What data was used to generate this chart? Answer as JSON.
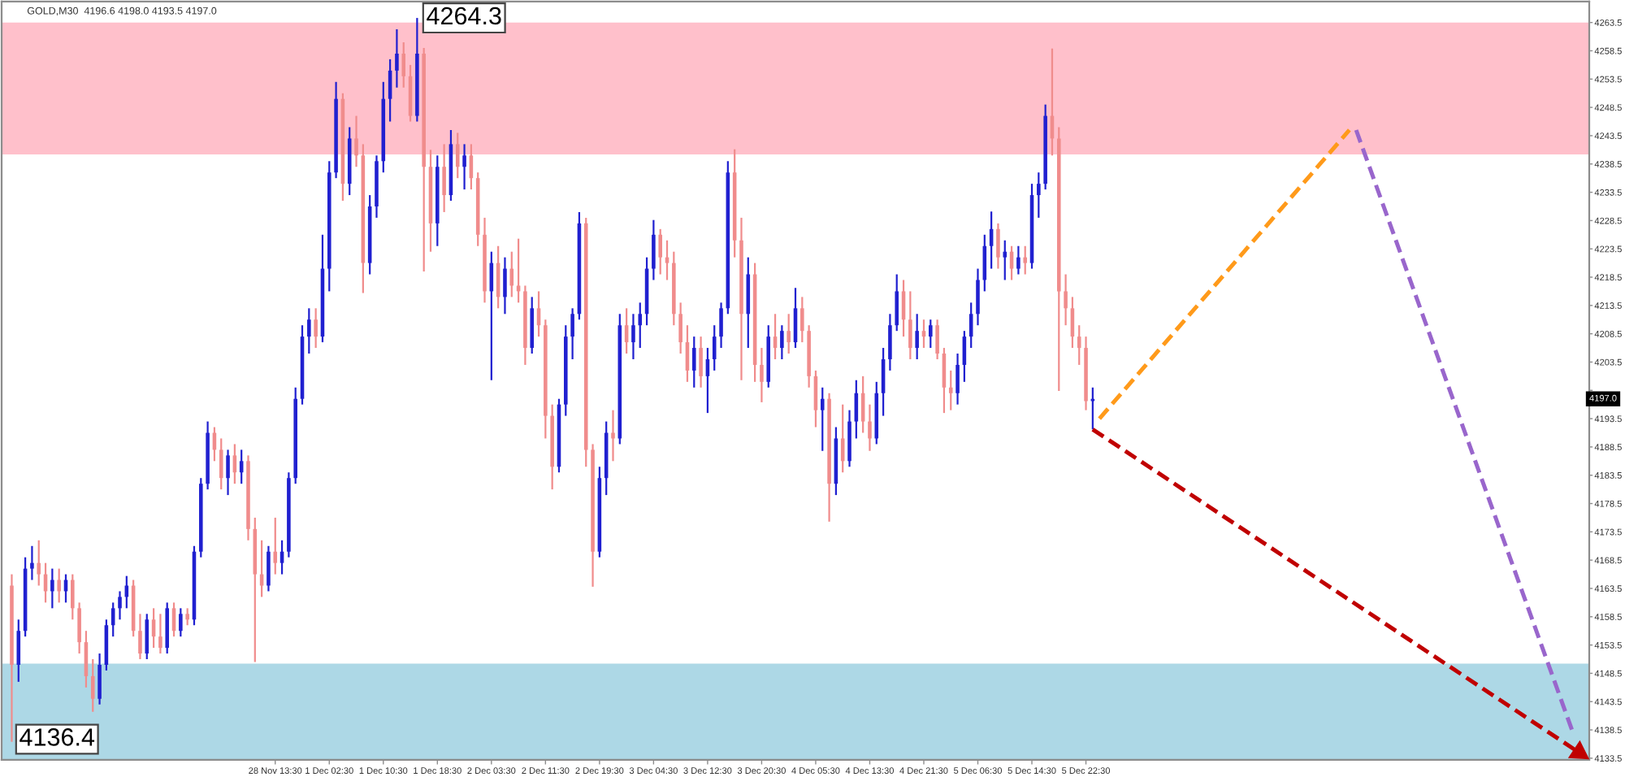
{
  "chart_data": {
    "type": "candlestick",
    "title": "GOLD,M30  4196.6 4198.0 4193.5 4197.0",
    "categories": [
      null,
      null,
      null,
      null,
      null,
      null,
      null,
      null,
      null,
      null,
      null,
      null,
      null,
      null,
      null,
      null,
      null,
      null,
      null,
      null,
      null,
      null,
      null,
      null,
      null,
      null,
      null,
      null,
      null,
      null,
      null,
      null,
      null,
      null,
      null,
      null,
      null,
      null,
      null,
      null,
      "28 Nov 13:30",
      null,
      null,
      null,
      null,
      null,
      null,
      null,
      "1 Dec 02:30",
      null,
      null,
      null,
      null,
      null,
      null,
      null,
      "1 Dec 10:30",
      null,
      null,
      null,
      null,
      null,
      null,
      null,
      "1 Dec 18:30",
      null,
      null,
      null,
      null,
      null,
      null,
      null,
      "2 Dec 03:30",
      null,
      null,
      null,
      null,
      null,
      null,
      null,
      "2 Dec 11:30",
      null,
      null,
      null,
      null,
      null,
      null,
      null,
      "2 Dec 19:30",
      null,
      null,
      null,
      null,
      null,
      null,
      null,
      "3 Dec 04:30",
      null,
      null,
      null,
      null,
      null,
      null,
      null,
      "3 Dec 12:30",
      null,
      null,
      null,
      null,
      null,
      null,
      null,
      "3 Dec 20:30",
      null,
      null,
      null,
      null,
      null,
      null,
      null,
      "4 Dec 05:30",
      null,
      null,
      null,
      null,
      null,
      null,
      null,
      "4 Dec 13:30",
      null,
      null,
      null,
      null,
      null,
      null,
      null,
      "4 Dec 21:30",
      null,
      null,
      null,
      null,
      null,
      null,
      null,
      "5 Dec 06:30",
      null,
      null,
      null,
      null,
      null,
      null,
      null,
      "5 Dec 14:30",
      null,
      null,
      null,
      null,
      null,
      null,
      null,
      "5 Dec 22:30",
      null,
      null,
      null,
      null,
      null,
      null,
      null,
      null,
      null,
      null,
      null,
      null,
      null,
      null,
      null,
      null,
      null,
      null,
      null,
      null,
      null,
      null,
      null,
      null,
      null,
      null,
      null,
      null,
      null,
      null,
      null,
      null,
      null,
      null,
      null,
      null,
      null,
      null,
      null,
      null,
      null,
      null,
      null,
      null,
      null,
      null,
      null,
      null,
      null,
      null,
      null,
      null,
      null,
      null,
      null,
      null,
      null,
      null,
      null,
      null,
      null,
      null,
      null,
      null,
      null,
      null,
      null,
      null,
      null,
      null,
      null,
      null,
      null,
      null
    ],
    "ohlc": [
      null,
      [
        4164,
        4166,
        4136.4,
        4150
      ],
      [
        4150,
        4158,
        4147,
        4156
      ],
      [
        4156,
        4169,
        4155,
        4167
      ],
      [
        4167,
        4171,
        4165,
        4168
      ],
      [
        4168,
        4172,
        4164,
        4166
      ],
      [
        4166,
        4168,
        4161,
        4163
      ],
      [
        4163,
        4167,
        4160,
        4165
      ],
      [
        4165,
        4167,
        4161,
        4163
      ],
      [
        4163,
        4166,
        4161,
        4165
      ],
      [
        4165,
        4166,
        4158,
        4160
      ],
      [
        4160,
        4161,
        4152,
        4154
      ],
      [
        4154,
        4156,
        4146,
        4148
      ],
      [
        4148,
        4151,
        4141.7,
        4144
      ],
      [
        4144,
        4152,
        4143,
        4150
      ],
      [
        4150,
        4158,
        4149,
        4157
      ],
      [
        4157,
        4161,
        4155,
        4160
      ],
      [
        4160,
        4163,
        4158,
        4162
      ],
      [
        4162,
        4165.7,
        4160,
        4164
      ],
      [
        4164,
        4165,
        4155,
        4156
      ],
      [
        4156,
        4159,
        4151,
        4152
      ],
      [
        4152,
        4159,
        4151,
        4158
      ],
      [
        4158,
        4160,
        4153,
        4155
      ],
      [
        4155,
        4159,
        4152,
        4153
      ],
      [
        4153,
        4161,
        4152,
        4160
      ],
      [
        4160,
        4161,
        4155,
        4156
      ],
      [
        4156,
        4160,
        4155,
        4159
      ],
      [
        4159,
        4160,
        4157,
        4158
      ],
      [
        4158,
        4171,
        4157,
        4170
      ],
      [
        4170,
        4183,
        4169,
        4182
      ],
      [
        4182,
        4193,
        4181,
        4191
      ],
      [
        4191,
        4192,
        4186,
        4188
      ],
      [
        4188,
        4190,
        4181,
        4183
      ],
      [
        4183,
        4188,
        4180,
        4187
      ],
      [
        4187,
        4189,
        4182,
        4184
      ],
      [
        4184,
        4188,
        4182,
        4186
      ],
      [
        4186,
        4187,
        4172,
        4174
      ],
      [
        4174,
        4176,
        4150.5,
        4166
      ],
      [
        4166,
        4172,
        4162,
        4164
      ],
      [
        4164,
        4171,
        4163,
        4170
      ],
      [
        4170,
        4176,
        4166,
        4168
      ],
      [
        4168,
        4172,
        4166,
        4170
      ],
      [
        4170,
        4184,
        4169,
        4183
      ],
      [
        4183,
        4199,
        4182,
        4197
      ],
      [
        4197,
        4210,
        4196,
        4208
      ],
      [
        4208,
        4213,
        4205,
        4211
      ],
      [
        4211,
        4213,
        4206,
        4208
      ],
      [
        4208,
        4226,
        4207,
        4220
      ],
      [
        4220,
        4239,
        4216,
        4237
      ],
      [
        4237,
        4253,
        4236,
        4250
      ],
      [
        4250,
        4251,
        4232,
        4235
      ],
      [
        4235,
        4245,
        4233,
        4243
      ],
      [
        4243,
        4247,
        4238,
        4240
      ],
      [
        4240,
        4242,
        4215.7,
        4221
      ],
      [
        4221,
        4233,
        4219,
        4231
      ],
      [
        4231,
        4240,
        4229,
        4239
      ],
      [
        4239,
        4253,
        4237,
        4250
      ],
      [
        4250,
        4257,
        4246,
        4255
      ],
      [
        4255,
        4262.3,
        4252,
        4258
      ],
      [
        4258,
        4260,
        4252,
        4254
      ],
      [
        4254,
        4256,
        4246,
        4247
      ],
      [
        4247,
        4264.3,
        4246,
        4258
      ],
      [
        4258,
        4259,
        4219.5,
        4238
      ],
      [
        4238,
        4241,
        4223,
        4228
      ],
      [
        4228,
        4240,
        4224,
        4238
      ],
      [
        4238,
        4242,
        4230,
        4233
      ],
      [
        4233,
        4244.5,
        4232,
        4242
      ],
      [
        4242,
        4244,
        4236,
        4238
      ],
      [
        4238,
        4242,
        4234,
        4240
      ],
      [
        4240,
        4242,
        4234,
        4236
      ],
      [
        4236,
        4237,
        4224,
        4226
      ],
      [
        4226,
        4229,
        4214,
        4216
      ],
      [
        4216,
        4223,
        4200.3,
        4221
      ],
      [
        4221,
        4224,
        4213,
        4215
      ],
      [
        4215,
        4222,
        4212,
        4220
      ],
      [
        4220,
        4223,
        4215,
        4217
      ],
      [
        4217,
        4225.3,
        4214,
        4216
      ],
      [
        4216,
        4217,
        4203,
        4206
      ],
      [
        4206,
        4215,
        4205,
        4213
      ],
      [
        4213,
        4216,
        4208,
        4210
      ],
      [
        4210,
        4211,
        4190,
        4194
      ],
      [
        4194,
        4196,
        4181,
        4185
      ],
      [
        4185,
        4197,
        4184,
        4196
      ],
      [
        4196,
        4210,
        4194,
        4208
      ],
      [
        4208,
        4213,
        4204,
        4212
      ],
      [
        4212,
        4230,
        4211,
        4228
      ],
      [
        4228,
        4229,
        4185,
        4188
      ],
      [
        4188,
        4189,
        4163.8,
        4170
      ],
      [
        4170,
        4185,
        4169,
        4183
      ],
      [
        4183,
        4193,
        4180,
        4191
      ],
      [
        4191,
        4195,
        4186,
        4190
      ],
      [
        4190,
        4212,
        4189,
        4210
      ],
      [
        4210,
        4213,
        4205,
        4207
      ],
      [
        4207,
        4212,
        4204,
        4210
      ],
      [
        4210,
        4214,
        4206,
        4212
      ],
      [
        4212,
        4222,
        4210,
        4220
      ],
      [
        4220,
        4228.6,
        4218,
        4226
      ],
      [
        4226,
        4227,
        4219,
        4222
      ],
      [
        4222,
        4225,
        4218,
        4221
      ],
      [
        4221,
        4223,
        4210,
        4212
      ],
      [
        4212,
        4214,
        4205,
        4207
      ],
      [
        4207,
        4210,
        4200,
        4202
      ],
      [
        4202,
        4208,
        4199,
        4206
      ],
      [
        4206,
        4208,
        4199,
        4201
      ],
      [
        4201,
        4206,
        4194.5,
        4204
      ],
      [
        4204,
        4210,
        4202,
        4208
      ],
      [
        4208,
        4214,
        4206,
        4213
      ],
      [
        4213,
        4239,
        4212,
        4237
      ],
      [
        4237,
        4241.1,
        4222,
        4225
      ],
      [
        4225,
        4229,
        4200.3,
        4212
      ],
      [
        4212,
        4222,
        4206,
        4219
      ],
      [
        4219,
        4221,
        4200,
        4203
      ],
      [
        4203,
        4206,
        4196.4,
        4200
      ],
      [
        4200,
        4210,
        4199,
        4208
      ],
      [
        4208,
        4212,
        4204,
        4206
      ],
      [
        4206,
        4210,
        4204,
        4209
      ],
      [
        4209,
        4212,
        4205,
        4207
      ],
      [
        4207,
        4216.6,
        4206,
        4213
      ],
      [
        4213,
        4215,
        4207,
        4209
      ],
      [
        4209,
        4210,
        4199,
        4201
      ],
      [
        4201,
        4202,
        4192,
        4195
      ],
      [
        4195,
        4199,
        4187.8,
        4197
      ],
      [
        4197,
        4198,
        4175.3,
        4182
      ],
      [
        4182,
        4192,
        4180,
        4190
      ],
      [
        4190,
        4196,
        4184,
        4186
      ],
      [
        4186,
        4195,
        4185,
        4193
      ],
      [
        4193,
        4200.3,
        4190,
        4198
      ],
      [
        4198,
        4201,
        4191,
        4193
      ],
      [
        4193,
        4196,
        4187.8,
        4190
      ],
      [
        4190,
        4200,
        4189,
        4198
      ],
      [
        4198,
        4206,
        4194,
        4204
      ],
      [
        4204,
        4212,
        4202,
        4210
      ],
      [
        4210,
        4219,
        4209,
        4216
      ],
      [
        4216,
        4218,
        4208,
        4211
      ],
      [
        4211,
        4216,
        4204,
        4206
      ],
      [
        4206,
        4212,
        4204,
        4209
      ],
      [
        4209,
        4211,
        4206,
        4208
      ],
      [
        4208,
        4211,
        4206,
        4210
      ],
      [
        4210,
        4211,
        4204,
        4205
      ],
      [
        4205,
        4206,
        4194.5,
        4199
      ],
      [
        4199,
        4202,
        4195,
        4198
      ],
      [
        4198,
        4205,
        4196,
        4203
      ],
      [
        4203,
        4209,
        4200,
        4208
      ],
      [
        4208,
        4214,
        4206,
        4212
      ],
      [
        4212,
        4220,
        4210,
        4218
      ],
      [
        4218,
        4226,
        4216,
        4224
      ],
      [
        4224,
        4230.1,
        4220,
        4227
      ],
      [
        4227,
        4228,
        4220,
        4222
      ],
      [
        4222,
        4225,
        4218,
        4223
      ],
      [
        4223,
        4224,
        4218,
        4220
      ],
      [
        4220,
        4224,
        4219,
        4222
      ],
      [
        4222,
        4224,
        4219,
        4221
      ],
      [
        4221,
        4235,
        4220,
        4233
      ],
      [
        4233,
        4237,
        4229,
        4235
      ],
      [
        4235,
        4249,
        4234,
        4247
      ],
      [
        4247,
        4258.9,
        4240,
        4243
      ],
      [
        4243,
        4245,
        4198.4,
        4216
      ],
      [
        4216,
        4219,
        4210,
        4213
      ],
      [
        4213,
        4215,
        4206,
        4208
      ],
      [
        4208,
        4210,
        4203,
        4206
      ],
      [
        4206,
        4208,
        4195,
        4196.6
      ],
      [
        4196.6,
        4199,
        4191.6,
        4197.0
      ],
      null,
      null,
      null,
      null,
      null,
      null,
      null,
      null,
      null,
      null,
      null,
      null,
      null,
      null,
      null,
      null,
      null,
      null,
      null,
      null,
      null,
      null,
      null,
      null,
      null,
      null,
      null,
      null,
      null,
      null,
      null,
      null,
      null,
      null,
      null,
      null,
      null,
      null,
      null,
      null,
      null,
      null,
      null,
      null,
      null,
      null,
      null,
      null,
      null,
      null,
      null,
      null,
      null,
      null,
      null,
      null,
      null,
      null,
      null,
      null,
      null,
      null,
      null,
      null,
      null,
      null,
      null,
      null,
      null,
      null,
      null,
      null,
      null
    ],
    "colors": [
      null,
      "#f08c8c",
      "#2020d0",
      "#2020d0",
      "#2020d0",
      "#f08c8c",
      "#f08c8c",
      "#2020d0",
      "#f08c8c",
      "#2020d0",
      "#f08c8c",
      "#f08c8c",
      "#f08c8c",
      "#f08c8c",
      "#2020d0",
      "#2020d0",
      "#2020d0",
      "#2020d0",
      "#2020d0",
      "#f08c8c",
      "#f08c8c",
      "#2020d0",
      "#f08c8c",
      "#f08c8c",
      "#2020d0",
      "#f08c8c",
      "#2020d0",
      "#f08c8c",
      "#2020d0",
      "#2020d0",
      "#2020d0",
      "#f08c8c",
      "#f08c8c",
      "#2020d0",
      "#f08c8c",
      "#2020d0",
      "#f08c8c",
      "#f08c8c",
      "#f08c8c",
      "#2020d0",
      "#f08c8c",
      "#2020d0",
      "#2020d0",
      "#2020d0",
      "#2020d0",
      "#2020d0",
      "#f08c8c",
      "#2020d0",
      "#2020d0",
      "#2020d0",
      "#f08c8c",
      "#2020d0",
      "#f08c8c",
      "#f08c8c",
      "#2020d0",
      "#2020d0",
      "#2020d0",
      "#2020d0",
      "#2020d0",
      "#f08c8c",
      "#f08c8c",
      "#2020d0",
      "#f08c8c",
      "#f08c8c",
      "#2020d0",
      "#f08c8c",
      "#2020d0",
      "#f08c8c",
      "#2020d0",
      "#f08c8c",
      "#f08c8c",
      "#f08c8c",
      "#2020d0",
      "#f08c8c",
      "#2020d0",
      "#f08c8c",
      "#f08c8c",
      "#f08c8c",
      "#2020d0",
      "#f08c8c",
      "#f08c8c",
      "#f08c8c",
      "#2020d0",
      "#2020d0",
      "#2020d0",
      "#2020d0",
      "#f08c8c",
      "#f08c8c",
      "#2020d0",
      "#2020d0",
      "#f08c8c",
      "#2020d0",
      "#f08c8c",
      "#2020d0",
      "#2020d0",
      "#2020d0",
      "#2020d0",
      "#f08c8c",
      "#f08c8c",
      "#f08c8c",
      "#f08c8c",
      "#f08c8c",
      "#2020d0",
      "#f08c8c",
      "#2020d0",
      "#2020d0",
      "#2020d0",
      "#2020d0",
      "#f08c8c",
      "#f08c8c",
      "#2020d0",
      "#f08c8c",
      "#f08c8c",
      "#2020d0",
      "#f08c8c",
      "#2020d0",
      "#f08c8c",
      "#2020d0",
      "#f08c8c",
      "#f08c8c",
      "#f08c8c",
      "#2020d0",
      "#f08c8c",
      "#2020d0",
      "#f08c8c",
      "#2020d0",
      "#2020d0",
      "#f08c8c",
      "#f08c8c",
      "#2020d0",
      "#2020d0",
      "#2020d0",
      "#2020d0",
      "#f08c8c",
      "#f08c8c",
      "#2020d0",
      "#f08c8c",
      "#2020d0",
      "#f08c8c",
      "#f08c8c",
      "#f08c8c",
      "#2020d0",
      "#2020d0",
      "#2020d0",
      "#2020d0",
      "#2020d0",
      "#2020d0",
      "#f08c8c",
      "#2020d0",
      "#f08c8c",
      "#2020d0",
      "#f08c8c",
      "#2020d0",
      "#2020d0",
      "#2020d0",
      "#f08c8c",
      "#f08c8c",
      "#f08c8c",
      "#f08c8c",
      "#f08c8c",
      "#f08c8c",
      "#2020d0",
      null,
      null,
      null,
      null,
      null,
      null,
      null,
      null,
      null,
      null,
      null,
      null,
      null,
      null,
      null,
      null,
      null,
      null,
      null,
      null,
      null,
      null,
      null,
      null,
      null,
      null,
      null,
      null,
      null,
      null,
      null,
      null,
      null,
      null,
      null,
      null,
      null,
      null,
      null,
      null,
      null,
      null,
      null,
      null,
      null,
      null,
      null,
      null,
      null,
      null,
      null,
      null,
      null,
      null,
      null,
      null,
      null,
      null,
      null,
      null,
      null,
      null,
      null,
      null,
      null,
      null,
      null,
      null,
      null,
      null,
      null,
      null,
      null
    ],
    "series": [
      {
        "type": "line",
        "color": "#ff9a1a",
        "line_style": "dashed",
        "values": [
          null,
          null,
          null,
          null,
          null,
          null,
          null,
          null,
          null,
          null,
          null,
          null,
          null,
          null,
          null,
          null,
          null,
          null,
          null,
          null,
          null,
          null,
          null,
          null,
          null,
          null,
          null,
          null,
          null,
          null,
          null,
          null,
          null,
          null,
          null,
          null,
          null,
          null,
          null,
          null,
          null,
          null,
          null,
          null,
          null,
          null,
          null,
          null,
          null,
          null,
          null,
          null,
          null,
          null,
          null,
          null,
          null,
          null,
          null,
          null,
          null,
          null,
          null,
          null,
          null,
          null,
          null,
          null,
          null,
          null,
          null,
          null,
          null,
          null,
          null,
          null,
          null,
          null,
          null,
          null,
          null,
          null,
          null,
          null,
          null,
          null,
          null,
          null,
          null,
          null,
          null,
          null,
          null,
          null,
          null,
          null,
          null,
          null,
          null,
          null,
          null,
          null,
          null,
          null,
          null,
          null,
          null,
          null,
          null,
          null,
          null,
          null,
          null,
          null,
          null,
          null,
          null,
          null,
          null,
          null,
          null,
          null,
          null,
          null,
          null,
          null,
          null,
          null,
          null,
          null,
          null,
          null,
          null,
          null,
          null,
          null,
          null,
          null,
          null,
          null,
          null,
          null,
          null,
          null,
          null,
          null,
          null,
          null,
          null,
          null,
          null,
          null,
          null,
          null,
          null,
          null,
          null,
          null,
          null,
          null,
          null,
          null,
          4193.5,
          null,
          null,
          null,
          null,
          null,
          null,
          null,
          null,
          null,
          null,
          null,
          null,
          null,
          null,
          null,
          null,
          null,
          null,
          null,
          null,
          null,
          null,
          null,
          null,
          null,
          null,
          null,
          null,
          null,
          null,
          null,
          null,
          null,
          null,
          null,
          null,
          4244.5,
          null,
          null,
          null,
          null,
          null,
          null,
          null,
          null,
          null,
          null,
          null,
          null,
          null,
          null,
          null,
          null,
          null,
          null,
          null,
          null,
          null,
          null,
          null,
          null,
          null,
          null,
          null,
          null,
          null,
          null,
          null,
          null,
          null,
          null,
          null
        ]
      },
      {
        "type": "line",
        "color": "#9966cc",
        "line_style": "dashed",
        "values": [
          null,
          null,
          null,
          null,
          null,
          null,
          null,
          null,
          null,
          null,
          null,
          null,
          null,
          null,
          null,
          null,
          null,
          null,
          null,
          null,
          null,
          null,
          null,
          null,
          null,
          null,
          null,
          null,
          null,
          null,
          null,
          null,
          null,
          null,
          null,
          null,
          null,
          null,
          null,
          null,
          null,
          null,
          null,
          null,
          null,
          null,
          null,
          null,
          null,
          null,
          null,
          null,
          null,
          null,
          null,
          null,
          null,
          null,
          null,
          null,
          null,
          null,
          null,
          null,
          null,
          null,
          null,
          null,
          null,
          null,
          null,
          null,
          null,
          null,
          null,
          null,
          null,
          null,
          null,
          null,
          null,
          null,
          null,
          null,
          null,
          null,
          null,
          null,
          null,
          null,
          null,
          null,
          null,
          null,
          null,
          null,
          null,
          null,
          null,
          null,
          null,
          null,
          null,
          null,
          null,
          null,
          null,
          null,
          null,
          null,
          null,
          null,
          null,
          null,
          null,
          null,
          null,
          null,
          null,
          null,
          null,
          null,
          null,
          null,
          null,
          null,
          null,
          null,
          null,
          null,
          null,
          null,
          null,
          null,
          null,
          null,
          null,
          null,
          null,
          null,
          null,
          null,
          null,
          null,
          null,
          null,
          null,
          null,
          null,
          null,
          null,
          null,
          null,
          null,
          null,
          null,
          null,
          null,
          null,
          null,
          null,
          null,
          null,
          null,
          null,
          null,
          null,
          null,
          null,
          null,
          null,
          null,
          null,
          null,
          null,
          null,
          null,
          null,
          null,
          null,
          null,
          null,
          null,
          null,
          null,
          null,
          null,
          null,
          null,
          null,
          null,
          null,
          null,
          null,
          null,
          null,
          null,
          null,
          null,
          null,
          4244.5,
          null,
          null,
          null,
          null,
          null,
          null,
          null,
          null,
          null,
          null,
          null,
          null,
          null,
          null,
          null,
          null,
          null,
          null,
          null,
          null,
          null,
          null,
          null,
          null,
          null,
          null,
          null,
          null,
          null,
          null,
          null,
          4138.3,
          null,
          null
        ]
      },
      {
        "type": "line",
        "color": "#c00000",
        "line_style": "dashed",
        "marker": "triangle",
        "values": [
          null,
          null,
          null,
          null,
          null,
          null,
          null,
          null,
          null,
          null,
          null,
          null,
          null,
          null,
          null,
          null,
          null,
          null,
          null,
          null,
          null,
          null,
          null,
          null,
          null,
          null,
          null,
          null,
          null,
          null,
          null,
          null,
          null,
          null,
          null,
          null,
          null,
          null,
          null,
          null,
          null,
          null,
          null,
          null,
          null,
          null,
          null,
          null,
          null,
          null,
          null,
          null,
          null,
          null,
          null,
          null,
          null,
          null,
          null,
          null,
          null,
          null,
          null,
          null,
          null,
          null,
          null,
          null,
          null,
          null,
          null,
          null,
          null,
          null,
          null,
          null,
          null,
          null,
          null,
          null,
          null,
          null,
          null,
          null,
          null,
          null,
          null,
          null,
          null,
          null,
          null,
          null,
          null,
          null,
          null,
          null,
          null,
          null,
          null,
          null,
          null,
          null,
          null,
          null,
          null,
          null,
          null,
          null,
          null,
          null,
          null,
          null,
          null,
          null,
          null,
          null,
          null,
          null,
          null,
          null,
          null,
          null,
          null,
          null,
          null,
          null,
          null,
          null,
          null,
          null,
          null,
          null,
          null,
          null,
          null,
          null,
          null,
          null,
          null,
          null,
          null,
          null,
          null,
          null,
          null,
          null,
          null,
          null,
          null,
          null,
          null,
          null,
          null,
          null,
          null,
          null,
          null,
          null,
          null,
          null,
          null,
          4191.6,
          null,
          null,
          null,
          null,
          null,
          null,
          null,
          null,
          null,
          null,
          null,
          null,
          null,
          null,
          null,
          null,
          null,
          null,
          null,
          null,
          null,
          null,
          null,
          null,
          null,
          null,
          null,
          null,
          null,
          null,
          null,
          null,
          null,
          null,
          null,
          null,
          null,
          null,
          null,
          null,
          null,
          null,
          null,
          null,
          null,
          null,
          null,
          null,
          null,
          null,
          null,
          null,
          null,
          null,
          null,
          null,
          null,
          null,
          null,
          null,
          null,
          null,
          null,
          null,
          null,
          null,
          null,
          null,
          null,
          null,
          null,
          4134.5,
          null
        ]
      }
    ],
    "ylim": [
      4133.2,
      4267.2
    ],
    "yticks": [
      4133.5,
      4138.5,
      4143.5,
      4148.5,
      4153.5,
      4158.5,
      4163.5,
      4168.5,
      4173.5,
      4178.5,
      4183.5,
      4188.5,
      4193.5,
      {
        "value": 4198.5,
        "label": null
      },
      4203.5,
      4208.5,
      4213.5,
      4218.5,
      4223.5,
      4228.5,
      4233.5,
      4238.5,
      4243.5,
      4248.5,
      4253.5,
      4258.5,
      4263.5
    ],
    "bands": [
      {
        "axis": "y",
        "from": 4240.2,
        "to": 4263.5,
        "color": "#ffc0cb"
      },
      {
        "axis": "y",
        "from": 4133.2,
        "to": 4150.2,
        "color": "#add8e6"
      }
    ],
    "annotations": [
      {
        "text": "4264.3",
        "y": 4264.3
      },
      "4197.0",
      "4136.4"
    ]
  }
}
